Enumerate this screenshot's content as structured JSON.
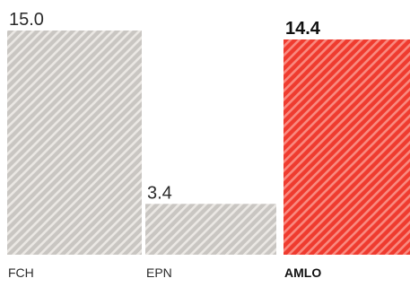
{
  "chart_data": {
    "type": "bar",
    "categories": [
      "FCH",
      "EPN",
      "AMLO"
    ],
    "values": [
      15.0,
      3.4,
      14.4
    ],
    "value_labels": [
      "15.0",
      "3.4",
      "14.4"
    ],
    "highlight_index": 2,
    "colors": {
      "default": "#c9c6c2",
      "default_hatch": "#ebe8e4",
      "highlight": "#ef3b2f",
      "highlight_hatch": "#f98a80"
    },
    "grid": false,
    "legend": "none",
    "ylim": [
      0,
      15.0
    ]
  }
}
